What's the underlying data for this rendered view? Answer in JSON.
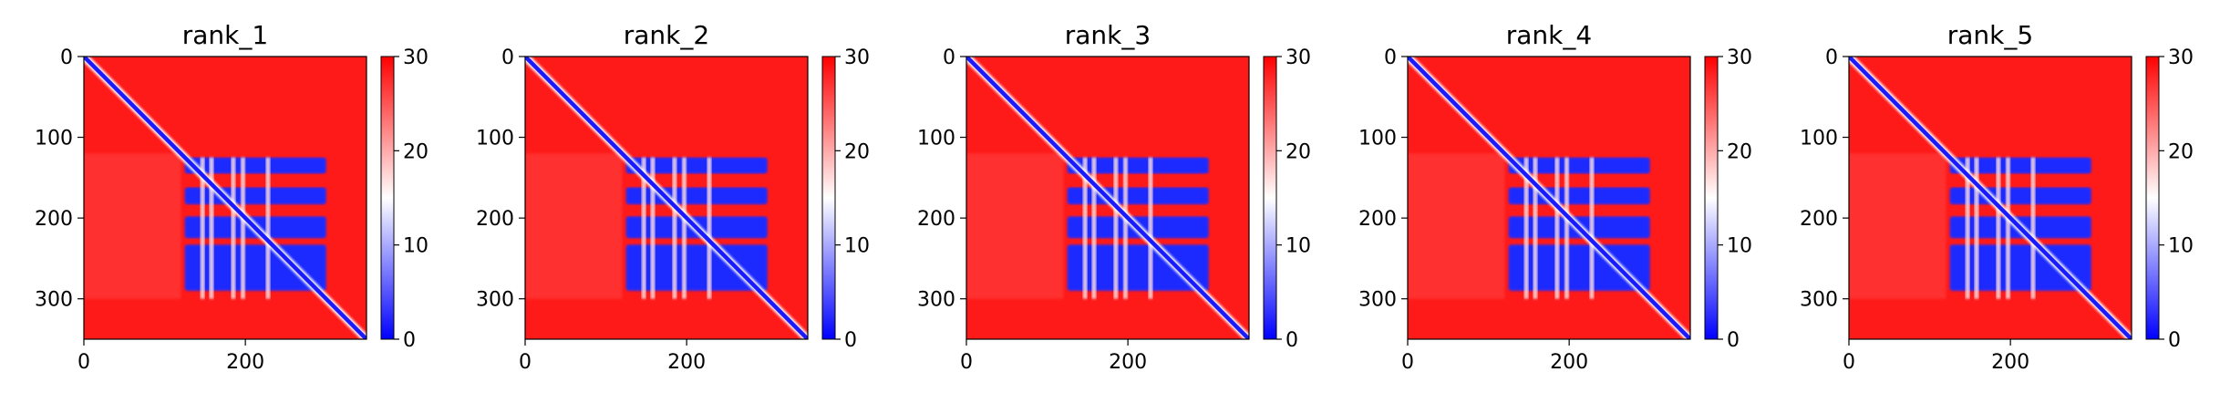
{
  "chart_data": [
    {
      "type": "heatmap",
      "title": "rank_1",
      "xlim": [
        0,
        350
      ],
      "ylim": [
        350,
        0
      ],
      "x_ticks": [
        "0",
        "200"
      ],
      "x_tick_values": [
        0,
        200
      ],
      "y_ticks": [
        "0",
        "100",
        "200",
        "300"
      ],
      "y_tick_values": [
        0,
        100,
        200,
        300
      ],
      "colorbar": {
        "min": 0,
        "max": 30,
        "ticks": [
          "0",
          "10",
          "20",
          "30"
        ],
        "tick_values": [
          0,
          10,
          20,
          30
        ],
        "colormap": [
          "#0000ff",
          "#ffffff",
          "#ff0000"
        ]
      },
      "blocks": [
        [
          120,
          300
        ],
        [
          120,
          300
        ],
        [
          120,
          300
        ],
        [
          120,
          300
        ]
      ],
      "grid": false
    },
    {
      "type": "heatmap",
      "title": "rank_2",
      "xlim": [
        0,
        350
      ],
      "ylim": [
        350,
        0
      ],
      "x_ticks": [
        "0",
        "200"
      ],
      "x_tick_values": [
        0,
        200
      ],
      "y_ticks": [
        "0",
        "100",
        "200",
        "300"
      ],
      "y_tick_values": [
        0,
        100,
        200,
        300
      ],
      "colorbar": {
        "min": 0,
        "max": 30,
        "ticks": [
          "0",
          "10",
          "20",
          "30"
        ],
        "tick_values": [
          0,
          10,
          20,
          30
        ],
        "colormap": [
          "#0000ff",
          "#ffffff",
          "#ff0000"
        ]
      },
      "grid": false
    },
    {
      "type": "heatmap",
      "title": "rank_3",
      "xlim": [
        0,
        350
      ],
      "ylim": [
        350,
        0
      ],
      "x_ticks": [
        "0",
        "200"
      ],
      "x_tick_values": [
        0,
        200
      ],
      "y_ticks": [
        "0",
        "100",
        "200",
        "300"
      ],
      "y_tick_values": [
        0,
        100,
        200,
        300
      ],
      "colorbar": {
        "min": 0,
        "max": 30,
        "ticks": [
          "0",
          "10",
          "20",
          "30"
        ],
        "tick_values": [
          0,
          10,
          20,
          30
        ],
        "colormap": [
          "#0000ff",
          "#ffffff",
          "#ff0000"
        ]
      },
      "grid": false
    },
    {
      "type": "heatmap",
      "title": "rank_4",
      "xlim": [
        0,
        350
      ],
      "ylim": [
        350,
        0
      ],
      "x_ticks": [
        "0",
        "200"
      ],
      "x_tick_values": [
        0,
        200
      ],
      "y_ticks": [
        "0",
        "100",
        "200",
        "300"
      ],
      "y_tick_values": [
        0,
        100,
        200,
        300
      ],
      "colorbar": {
        "min": 0,
        "max": 30,
        "ticks": [
          "0",
          "10",
          "20",
          "30"
        ],
        "tick_values": [
          0,
          10,
          20,
          30
        ],
        "colormap": [
          "#0000ff",
          "#ffffff",
          "#ff0000"
        ]
      },
      "grid": false
    },
    {
      "type": "heatmap",
      "title": "rank_5",
      "xlim": [
        0,
        350
      ],
      "ylim": [
        350,
        0
      ],
      "x_ticks": [
        "0",
        "200"
      ],
      "x_tick_values": [
        0,
        200
      ],
      "y_ticks": [
        "0",
        "100",
        "200",
        "300"
      ],
      "y_tick_values": [
        0,
        100,
        200,
        300
      ],
      "colorbar": {
        "min": 0,
        "max": 30,
        "ticks": [
          "0",
          "10",
          "20",
          "30"
        ],
        "tick_values": [
          0,
          10,
          20,
          30
        ],
        "colormap": [
          "#0000ff",
          "#ffffff",
          "#ff0000"
        ]
      },
      "grid": false
    }
  ],
  "shared_structure": {
    "matrix_size": 350,
    "blue_block_x_range": [
      125,
      300
    ],
    "blue_block_y_bands": [
      [
        125,
        145
      ],
      [
        162,
        183
      ],
      [
        198,
        225
      ],
      [
        233,
        290
      ]
    ],
    "red_stripes_x": [
      147,
      158,
      185,
      197,
      228
    ]
  }
}
